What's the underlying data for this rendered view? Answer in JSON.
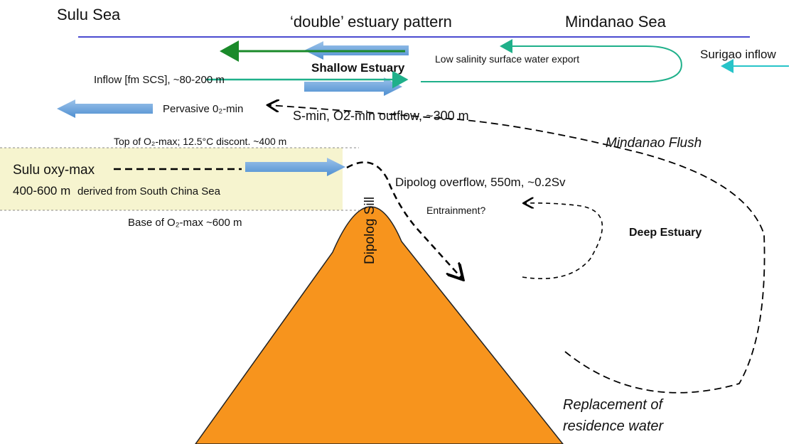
{
  "header": {
    "left": "Sulu Sea",
    "title": "‘double’ estuary pattern",
    "right": "Mindanao Sea"
  },
  "labels": {
    "shallow_estuary": "Shallow Estuary",
    "surface_export": "Low salinity surface water export",
    "surigao": "Surigao inflow",
    "inflow": "Inflow [fm SCS], ~80-200 m",
    "pervasive": "Pervasive 0₂-min",
    "smin": "S-min, O2-min outflow, ~300 m",
    "flush": "Mindanao Flush",
    "top_o2": "Top of O₂-max; 12.5°C discont. ~400 m",
    "oxy_max": "Sulu oxy-max",
    "depth": "400-600 m",
    "derived": "derived from South China Sea",
    "sill": "Dipolog Sill",
    "overflow": "Dipolog overflow, 550m, ~0.2Sv",
    "entrainment": "Entrainment?",
    "deep_estuary": "Deep Estuary",
    "base_o2": "Base of O₂-max ~600 m",
    "replacement_1": "Replacement of",
    "replacement_2": "residence water"
  }
}
